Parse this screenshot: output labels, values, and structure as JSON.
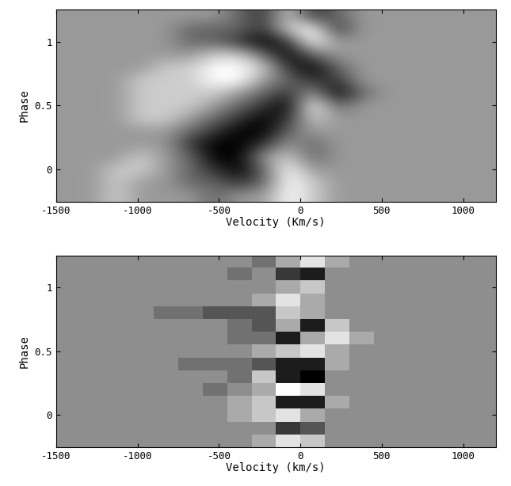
{
  "chart_data": [
    {
      "type": "heatmap",
      "xlabel": "Velocity (Km/s)",
      "ylabel": "Phase",
      "x": [
        -1425,
        -1275,
        -1125,
        -975,
        -825,
        -675,
        -525,
        -375,
        -225,
        -75,
        75,
        225,
        375,
        525,
        675,
        825,
        975,
        1125
      ],
      "y": [
        -0.2,
        -0.1,
        0.0,
        0.1,
        0.2,
        0.3,
        0.4,
        0.5,
        0.6,
        0.7,
        0.8,
        0.9,
        1.0,
        1.1,
        1.2
      ],
      "cells": [
        [
          6,
          6,
          7,
          6,
          6,
          6,
          5,
          6,
          6,
          8,
          7,
          6,
          6,
          6,
          6,
          6,
          6,
          6
        ],
        [
          6,
          6,
          7,
          6,
          6,
          5,
          5,
          4,
          5,
          8,
          7,
          6,
          6,
          6,
          6,
          6,
          6,
          6
        ],
        [
          6,
          6,
          7,
          7,
          6,
          5,
          4,
          3,
          5,
          8,
          6,
          6,
          6,
          6,
          6,
          6,
          6,
          6
        ],
        [
          6,
          6,
          6,
          7,
          6,
          5,
          3,
          3,
          6,
          7,
          5,
          6,
          6,
          6,
          6,
          6,
          6,
          6
        ],
        [
          6,
          6,
          6,
          6,
          6,
          4,
          3,
          3,
          4,
          6,
          5,
          6,
          6,
          6,
          6,
          6,
          6,
          6
        ],
        [
          6,
          6,
          6,
          6,
          6,
          5,
          4,
          3,
          3,
          5,
          6,
          6,
          6,
          6,
          6,
          6,
          6,
          6
        ],
        [
          6,
          6,
          6,
          7,
          7,
          6,
          5,
          4,
          3,
          4,
          7,
          6,
          6,
          6,
          6,
          6,
          6,
          6
        ],
        [
          6,
          6,
          6,
          7,
          7,
          7,
          6,
          5,
          4,
          3,
          8,
          5,
          6,
          6,
          6,
          6,
          6,
          6
        ],
        [
          6,
          6,
          6,
          7,
          7,
          7,
          7,
          6,
          5,
          4,
          6,
          3,
          5,
          6,
          6,
          6,
          6,
          6
        ],
        [
          6,
          6,
          6,
          7,
          7,
          7,
          8,
          8,
          6,
          5,
          4,
          4,
          6,
          6,
          6,
          6,
          6,
          6
        ],
        [
          6,
          6,
          6,
          6,
          7,
          7,
          8,
          8,
          7,
          4,
          3,
          5,
          6,
          6,
          6,
          6,
          6,
          6
        ],
        [
          6,
          6,
          6,
          6,
          6,
          6,
          7,
          7,
          5,
          3,
          5,
          6,
          6,
          6,
          6,
          6,
          6,
          6
        ],
        [
          6,
          6,
          6,
          6,
          6,
          5,
          5,
          4,
          3,
          4,
          8,
          6,
          6,
          6,
          6,
          6,
          6,
          6
        ],
        [
          6,
          6,
          6,
          6,
          6,
          5,
          5,
          5,
          4,
          7,
          8,
          4,
          6,
          6,
          6,
          6,
          6,
          6
        ],
        [
          6,
          6,
          6,
          6,
          6,
          6,
          6,
          5,
          4,
          7,
          4,
          5,
          6,
          6,
          6,
          6,
          6,
          6
        ]
      ],
      "xlim": [
        -1500,
        1200
      ],
      "ylim": [
        -0.25,
        1.25
      ],
      "xticks": [
        -1500,
        -1000,
        -500,
        0,
        500,
        1000
      ],
      "yticks": [
        0,
        0.5,
        1
      ]
    },
    {
      "type": "heatmap",
      "xlabel": "Velocity (km/s)",
      "ylabel": "Phase",
      "x": [
        -1425,
        -1275,
        -1125,
        -975,
        -825,
        -675,
        -525,
        -375,
        -225,
        -75,
        75,
        225,
        375,
        525,
        675,
        825,
        975,
        1125
      ],
      "y": [
        -0.2,
        -0.1,
        0.0,
        0.1,
        0.2,
        0.3,
        0.4,
        0.5,
        0.6,
        0.7,
        0.8,
        0.9,
        1.0,
        1.1,
        1.2
      ],
      "cells": [
        [
          5,
          5,
          5,
          5,
          5,
          5,
          5,
          5,
          6,
          8,
          7,
          5,
          5,
          5,
          5,
          5,
          5,
          5
        ],
        [
          5,
          5,
          5,
          5,
          5,
          5,
          5,
          5,
          5,
          2,
          3,
          5,
          5,
          5,
          5,
          5,
          5,
          5
        ],
        [
          5,
          5,
          5,
          5,
          5,
          5,
          5,
          6,
          7,
          8,
          6,
          5,
          5,
          5,
          5,
          5,
          5,
          5
        ],
        [
          5,
          5,
          5,
          5,
          5,
          5,
          5,
          6,
          7,
          1,
          1,
          6,
          5,
          5,
          5,
          5,
          5,
          5
        ],
        [
          5,
          5,
          5,
          5,
          5,
          5,
          4,
          5,
          6,
          9,
          8,
          5,
          5,
          5,
          5,
          5,
          5,
          5
        ],
        [
          5,
          5,
          5,
          5,
          5,
          5,
          5,
          4,
          7,
          1,
          0,
          5,
          5,
          5,
          5,
          5,
          5,
          5
        ],
        [
          5,
          5,
          5,
          5,
          5,
          4,
          4,
          4,
          3,
          1,
          1,
          6,
          5,
          5,
          5,
          5,
          5,
          5
        ],
        [
          5,
          5,
          5,
          5,
          5,
          5,
          5,
          5,
          6,
          7,
          8,
          6,
          5,
          5,
          5,
          5,
          5,
          5
        ],
        [
          5,
          5,
          5,
          5,
          5,
          5,
          5,
          4,
          4,
          1,
          6,
          8,
          6,
          5,
          5,
          5,
          5,
          5
        ],
        [
          5,
          5,
          5,
          5,
          5,
          5,
          5,
          4,
          3,
          6,
          1,
          7,
          5,
          5,
          5,
          5,
          5,
          5
        ],
        [
          5,
          5,
          5,
          5,
          4,
          4,
          3,
          3,
          3,
          7,
          6,
          5,
          5,
          5,
          5,
          5,
          5,
          5
        ],
        [
          5,
          5,
          5,
          5,
          5,
          5,
          5,
          5,
          6,
          8,
          6,
          5,
          5,
          5,
          5,
          5,
          5,
          5
        ],
        [
          5,
          5,
          5,
          5,
          5,
          5,
          5,
          5,
          5,
          6,
          7,
          5,
          5,
          5,
          5,
          5,
          5,
          5
        ],
        [
          5,
          5,
          5,
          5,
          5,
          5,
          5,
          4,
          5,
          2,
          1,
          5,
          5,
          5,
          5,
          5,
          5,
          5
        ],
        [
          5,
          5,
          5,
          5,
          5,
          5,
          5,
          5,
          4,
          6,
          8,
          6,
          5,
          5,
          5,
          5,
          5,
          5
        ]
      ],
      "xlim": [
        -1500,
        1200
      ],
      "ylim": [
        -0.25,
        1.25
      ],
      "xticks": [
        -1500,
        -1000,
        -500,
        0,
        500,
        1000
      ],
      "yticks": [
        0,
        0.5,
        1
      ]
    }
  ]
}
